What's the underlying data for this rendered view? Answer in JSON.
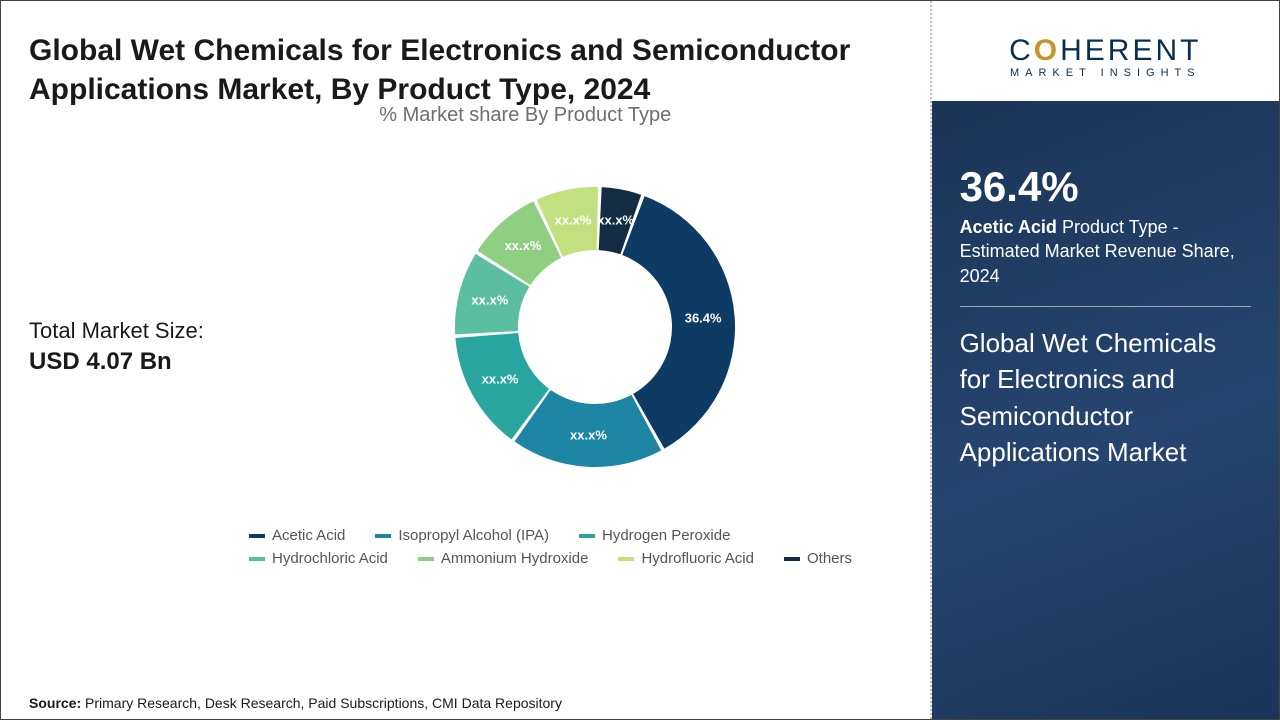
{
  "title": "Global Wet Chemicals for Electronics and Semiconductor Applications Market, By Product Type, 2024",
  "chart": {
    "subtitle": "% Market share By Product Type",
    "type": "donut",
    "inner_radius_ratio": 0.55,
    "background_color": "#ffffff",
    "segments": [
      {
        "name": "Acetic Acid",
        "label": "36.4%",
        "value": 36.4,
        "color": "#0e3b63"
      },
      {
        "name": "Isopropyl Alcohol (IPA)",
        "label": "xx.x%",
        "value": 18,
        "color": "#1c86a4"
      },
      {
        "name": "Hydrogen Peroxide",
        "label": "xx.x%",
        "value": 14,
        "color": "#2aa6a0"
      },
      {
        "name": "Hydrochloric Acid",
        "label": "xx.x%",
        "value": 10,
        "color": "#5cbea0"
      },
      {
        "name": "Ammonium Hydroxide",
        "label": "xx.x%",
        "value": 9,
        "color": "#8fcf81"
      },
      {
        "name": "Hydrofluoric Acid",
        "label": "xx.x%",
        "value": 7.6,
        "color": "#c2e07f"
      },
      {
        "name": "Others",
        "label": "xx.x%",
        "value": 5,
        "color": "#132c44"
      }
    ],
    "gap_deg": 1.5,
    "start_angle_deg": -70
  },
  "left_stat": {
    "label": "Total Market Size:",
    "value": "USD 4.07 Bn"
  },
  "legend_fontsize": 15,
  "source": {
    "label": "Source:",
    "text": "Primary Research, Desk Research, Paid Subscriptions, CMI Data Repository"
  },
  "logo": {
    "main_pre": "C",
    "main_o": "O",
    "main_post": "HERENT",
    "sub": "MARKET INSIGHTS",
    "main_color": "#0a2e4d",
    "accent_color": "#c8942a"
  },
  "right": {
    "percent": "36.4%",
    "desc_bold": "Acetic Acid",
    "desc_rest": " Product Type - Estimated Market Revenue Share, 2024",
    "market_name": "Global Wet Chemicals for Electronics and Semiconductor Applications Market",
    "bg_color": "#1d3a5f",
    "text_color": "#ffffff"
  }
}
